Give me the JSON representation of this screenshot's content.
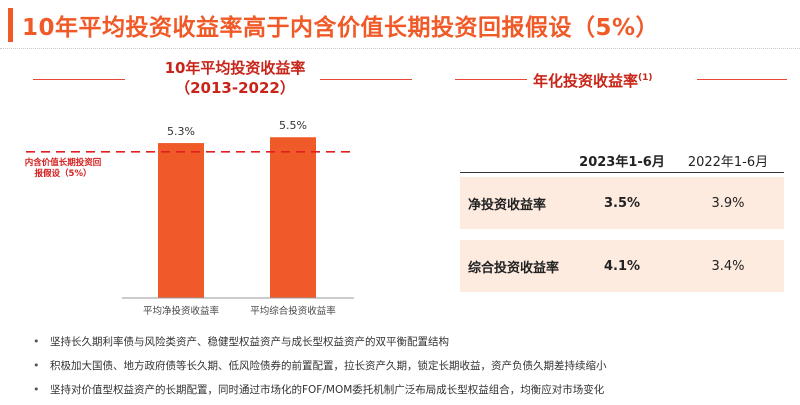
{
  "title": "10年平均投资收益率高于内含价值长期投资回报假设（5%）",
  "left_chart": {
    "title_line1": "10年平均投资收益率",
    "title_line2": "（2013-2022）",
    "reference_label": "内含价值长期投资回报假设（5%）"
  },
  "chart_data": {
    "type": "bar",
    "categories": [
      "平均净投资收益率",
      "平均综合投资收益率"
    ],
    "values": [
      5.3,
      5.5
    ],
    "value_labels": [
      "5.3%",
      "5.5%"
    ],
    "reference_line": 5.0,
    "ylim": [
      0,
      6.5
    ],
    "colors": {
      "bar": "#f05a28",
      "reference": "#e02020"
    }
  },
  "right_panel": {
    "title": "年化投资收益率",
    "footnote_mark": "(1)",
    "headers": [
      "",
      "2023年1-6月",
      "2022年1-6月"
    ],
    "rows": [
      {
        "label": "净投资收益率",
        "v2023": "3.5%",
        "v2022": "3.9%"
      },
      {
        "label": "综合投资收益率",
        "v2023": "4.1%",
        "v2022": "3.4%"
      }
    ]
  },
  "bullets": [
    "坚持长久期利率债与风险类资产、稳健型权益资产与成长型权益资产的双平衡配置结构",
    "积极加大国债、地方政府债等长久期、低风险债券的前置配置，拉长资产久期，锁定长期收益，资产负债久期差持续缩小",
    "坚持对价值型权益资产的长期配置，同时通过市场化的FOF/MOM委托机制广泛布局成长型权益组合，均衡应对市场变化"
  ],
  "colors": {
    "accent": "#f05a28",
    "title_red": "#c8251a",
    "row_fill": "#fdebe0"
  }
}
